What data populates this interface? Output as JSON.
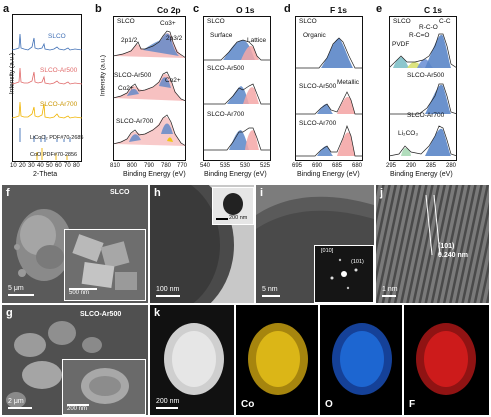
{
  "panels": {
    "a": {
      "letter": "a",
      "series": [
        "SLCO",
        "SLCO-Ar500",
        "SLCO-Ar700"
      ],
      "refs": [
        "LiCoO₂ PDF#70-2685",
        "CoO PDF#70-2856"
      ],
      "ylabel": "Intensity (a.u.)",
      "xlabel": "2-Theta",
      "xticks": [
        "10",
        "20",
        "30",
        "40",
        "50",
        "60",
        "70",
        "80"
      ],
      "colors": {
        "SLCO": "#3f6fb5",
        "SLCO-Ar500": "#e06a6a",
        "SLCO-Ar700": "#f0b400"
      }
    },
    "b": {
      "letter": "b",
      "title": "Co 2p",
      "labels": [
        "SLCO",
        "2p1/2",
        "Co3+",
        "2p3/2",
        "SLCO-Ar500",
        "Co2+",
        "Co2+",
        "SLCO-Ar700"
      ],
      "xlabel": "Binding Energy (eV)",
      "ylabel": "Intensity (a.u.)",
      "xticks": [
        "810",
        "800",
        "790",
        "780",
        "770"
      ]
    },
    "c": {
      "letter": "c",
      "title": "O 1s",
      "labels": [
        "SLCO",
        "Surface",
        "Lattice",
        "SLCO-Ar500",
        "SLCO-Ar700"
      ],
      "xlabel": "Binding Energy (eV)",
      "xticks": [
        "540",
        "535",
        "530",
        "525"
      ]
    },
    "d": {
      "letter": "d",
      "title": "F 1s",
      "labels": [
        "SLCO",
        "Organic",
        "SLCO-Ar500",
        "Metallic",
        "SLCO-Ar700"
      ],
      "xlabel": "Binding Energy (eV)",
      "xticks": [
        "695",
        "690",
        "685",
        "680"
      ]
    },
    "e": {
      "letter": "e",
      "title": "C 1s",
      "labels": [
        "SLCO",
        "PVDF",
        "R-C=O",
        "R-C-O",
        "C-C",
        "SLCO-Ar500",
        "SLCO-Ar700",
        "Li₂CO₃"
      ],
      "xlabel": "Binding Energy (eV)",
      "xticks": [
        "295",
        "290",
        "285",
        "280"
      ]
    },
    "f": {
      "letter": "f",
      "name": "SLCO",
      "scale": "5 μm",
      "inset_scale": "500 nm"
    },
    "g": {
      "letter": "g",
      "name": "SLCO-Ar500",
      "scale": "2 μm",
      "inset_scale": "200 nm"
    },
    "h": {
      "letter": "h",
      "scale": "100 nm",
      "inset_scale": "200 nm"
    },
    "i": {
      "letter": "i",
      "scale": "5 nm",
      "zone": "[010]",
      "spot": "(101)"
    },
    "j": {
      "letter": "j",
      "scale": "1 nm",
      "plane": "(101)",
      "spacing": "0.240 nm"
    },
    "k": {
      "letter": "k",
      "scale": "200 nm",
      "elements": [
        "Co",
        "O",
        "F"
      ],
      "element_colors": {
        "Co": "#e8c21a",
        "O": "#1f6fe0",
        "F": "#e21f1f"
      }
    }
  }
}
